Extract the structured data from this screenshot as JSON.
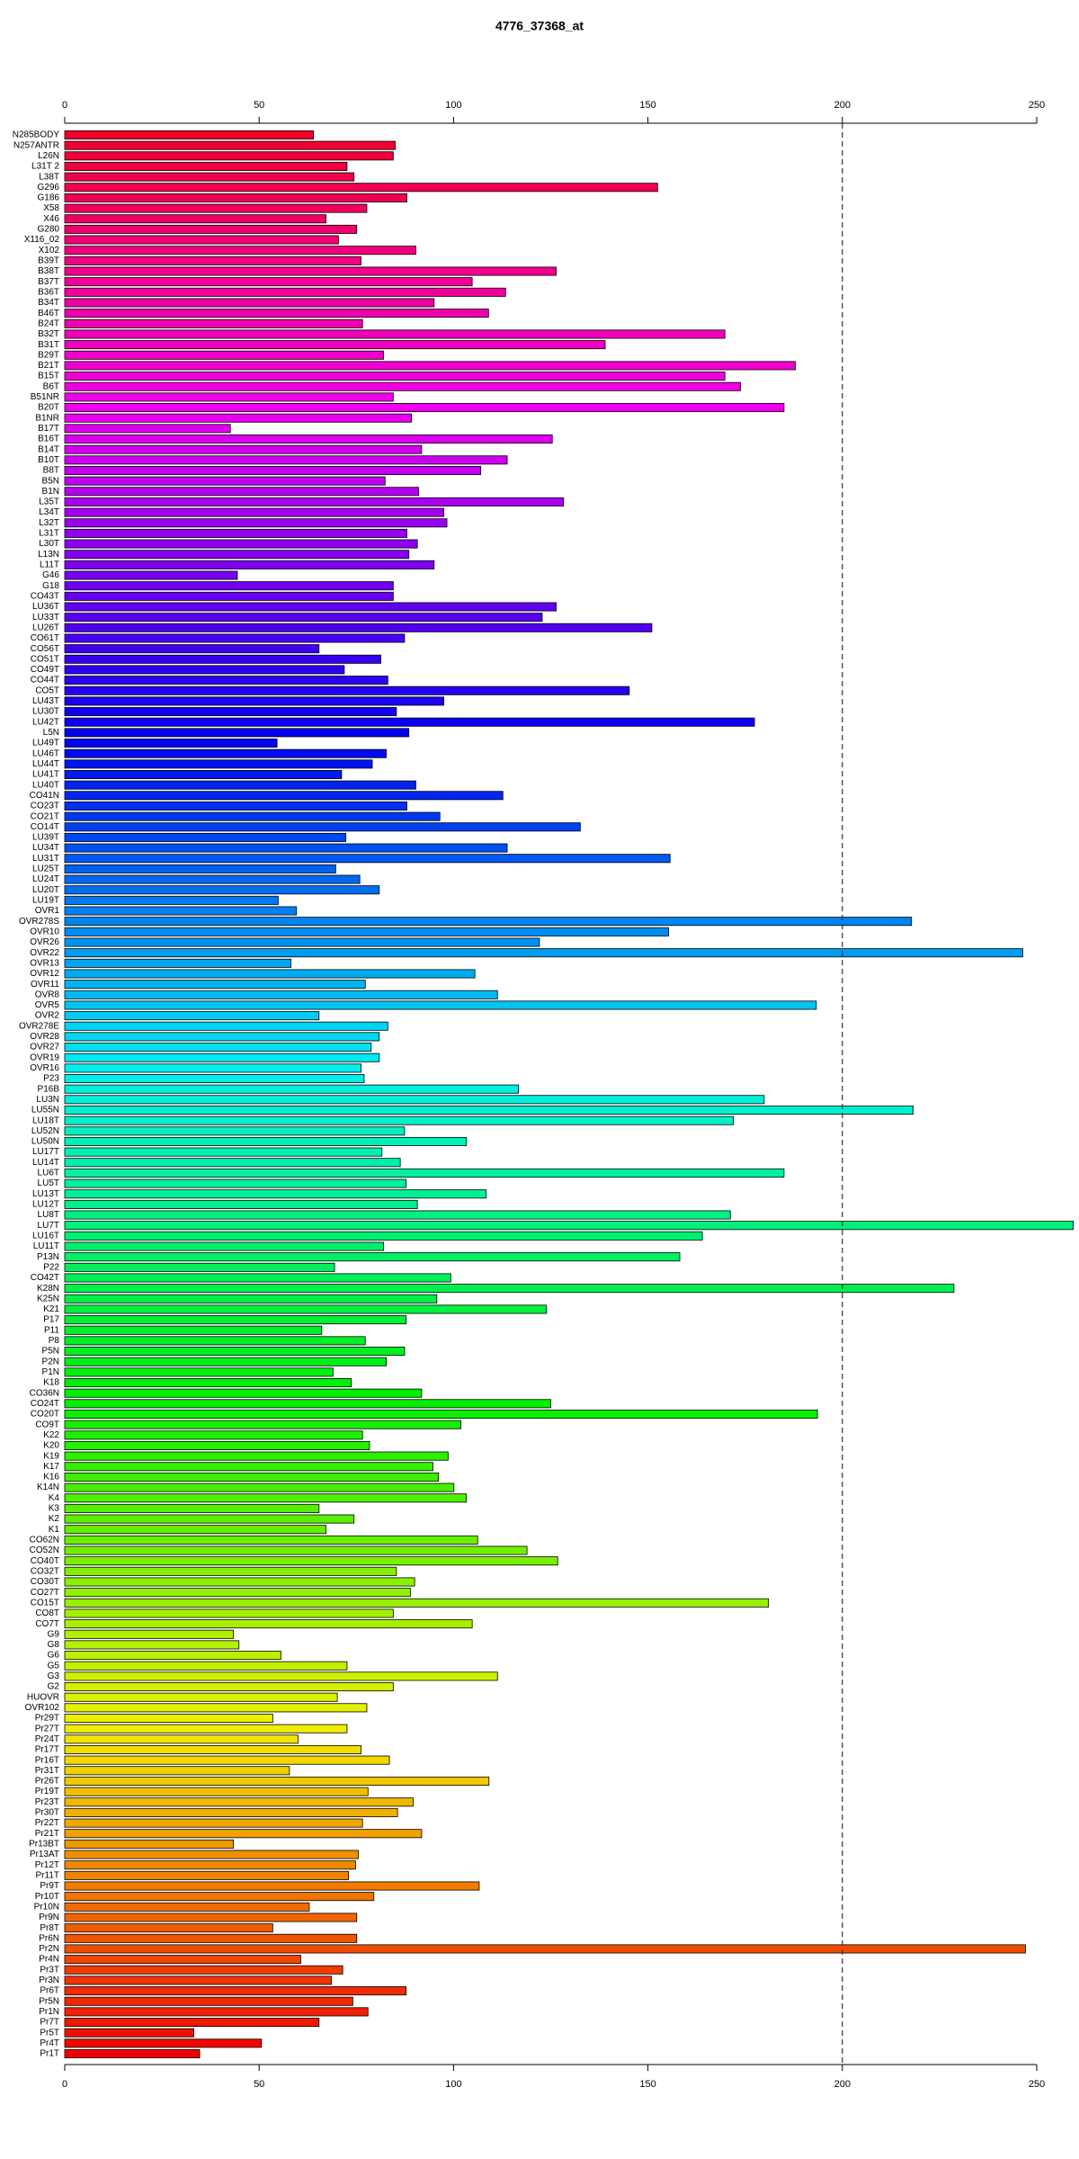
{
  "chart_data": {
    "type": "barh",
    "title": "4776_37368_at",
    "categories": [
      "N285BODY",
      "N257ANTR",
      "L26N",
      "L31T 2",
      "L38T",
      "G296",
      "G186",
      "X58",
      "X46",
      "G280",
      "X116_02",
      "X102",
      "B39T",
      "B38T",
      "B37T",
      "B36T",
      "B34T",
      "B46T",
      "B24T",
      "B32T",
      "B31T",
      "B29T",
      "B21T",
      "B15T",
      "B6T",
      "B51NR",
      "B20T",
      "B1NR",
      "B17T",
      "B16T",
      "B14T",
      "B10T",
      "B8T",
      "B5N",
      "B1N",
      "L35T",
      "L34T",
      "L32T",
      "L31T",
      "L30T",
      "L13N",
      "L11T",
      "G46",
      "G18",
      "CO43T",
      "LU36T",
      "LU33T",
      "LU26T",
      "CO61T",
      "CO56T",
      "CO51T",
      "CO49T",
      "CO44T",
      "CO5T",
      "LU43T",
      "LU30T",
      "LU42T",
      "L5N",
      "LU49T",
      "LU46T",
      "LU44T",
      "LU41T",
      "LU40T",
      "CO41N",
      "CO23T",
      "CO21T",
      "CO14T",
      "LU39T",
      "LU34T",
      "LU31T",
      "LU25T",
      "LU24T",
      "LU20T",
      "LU19T",
      "OVR1",
      "OVR278S",
      "OVR10",
      "OVR26",
      "OVR22",
      "OVR13",
      "OVR12",
      "OVR11",
      "OVR8",
      "OVR5",
      "OVR2",
      "OVR278E",
      "OVR28",
      "OVR27",
      "OVR19",
      "OVR16",
      "P23",
      "P16B",
      "LU3N",
      "LU55N",
      "LU18T",
      "LU52N",
      "LU50N",
      "LU17T",
      "LU14T",
      "LU6T",
      "LU5T",
      "LU13T",
      "LU12T",
      "LU8T",
      "LU7T",
      "LU16T",
      "LU11T",
      "P13N",
      "P22",
      "CO42T",
      "K28N",
      "K25N",
      "K21",
      "P17",
      "P11",
      "P8",
      "P5N",
      "P2N",
      "P1N",
      "K18",
      "CO36N",
      "CO24T",
      "CO20T",
      "CO9T",
      "K22",
      "K20",
      "K19",
      "K17",
      "K16",
      "K14N",
      "K4",
      "K3",
      "K2",
      "K1",
      "CO62N",
      "CO52N",
      "CO40T",
      "CO32T",
      "CO30T",
      "CO27T",
      "CO15T",
      "CO8T",
      "CO7T",
      "G9",
      "G8",
      "G6",
      "G5",
      "G3",
      "G2",
      "HUOVR",
      "OVR102",
      "Pr29T",
      "Pr27T",
      "Pr24T",
      "Pr17T",
      "Pr16T",
      "Pr31T",
      "Pr26T",
      "Pr19T",
      "Pr23T",
      "Pr30T",
      "Pr22T",
      "Pr21T",
      "Pr13BT",
      "Pr13AT",
      "Pr12T",
      "Pr11T",
      "Pr9T",
      "Pr10T",
      "Pr10N",
      "Pr9N",
      "Pr8T",
      "Pr6N",
      "Pr2N",
      "Pr4N",
      "Pr3T",
      "Pr3N",
      "Pr6T",
      "Pr5N",
      "Pr1N",
      "Pr7T",
      "Pr5T",
      "Pr4T",
      "Pr1T"
    ],
    "values": [
      64,
      85,
      84.5,
      72.6,
      74.4,
      152.5,
      88,
      77.7,
      67.2,
      75.1,
      70.4,
      90.3,
      76.2,
      126.4,
      104.8,
      113.4,
      95,
      109,
      76.6,
      169.8,
      139,
      82,
      187.9,
      169.8,
      173.8,
      84.5,
      185,
      89.2,
      42.6,
      125.4,
      91.8,
      113.8,
      107,
      82.4,
      91,
      128.3,
      97.5,
      98.3,
      88,
      90.7,
      88.5,
      95,
      44.4,
      84.5,
      84.5,
      126.4,
      122.8,
      151,
      87.4,
      65.4,
      81.3,
      71.9,
      83.1,
      145.2,
      97.5,
      85.3,
      177.4,
      88.5,
      54.6,
      82.7,
      79.1,
      71.2,
      90.3,
      112.7,
      88,
      96.5,
      132.6,
      72.3,
      113.8,
      155.7,
      69.7,
      75.9,
      80.9,
      54.9,
      59.6,
      217.8,
      155.3,
      122.1,
      246.4,
      58.2,
      105.5,
      77.3,
      111.3,
      193.3,
      65.4,
      83.1,
      80.9,
      78.8,
      80.9,
      76.2,
      77,
      116.7,
      179.9,
      218.2,
      172,
      87.4,
      103.3,
      81.6,
      86.3,
      185,
      87.8,
      108.4,
      90.7,
      171.2,
      259.4,
      164,
      82,
      158.2,
      69.4,
      99.3,
      228.7,
      95.7,
      123.9,
      87.8,
      66.1,
      77.3,
      87.4,
      82.7,
      69,
      73.7,
      91.8,
      125,
      193.6,
      101.9,
      76.6,
      78.4,
      98.6,
      94.7,
      96.1,
      100.1,
      103.3,
      65.4,
      74.4,
      67.2,
      106.2,
      118.9,
      126.8,
      85.3,
      90,
      88.9,
      181,
      84.5,
      104.8,
      43.4,
      44.8,
      55.6,
      72.6,
      111.3,
      84.5,
      70.1,
      77.7,
      53.5,
      72.6,
      60,
      76.2,
      83.5,
      57.8,
      109.1,
      78,
      89.6,
      85.6,
      76.6,
      91.8,
      43.4,
      75.5,
      74.8,
      73,
      106.6,
      79.5,
      62.9,
      75.1,
      53.5,
      75.1,
      247.1,
      60.7,
      71.5,
      68.6,
      87.8,
      74.1,
      78,
      65.4,
      33.2,
      50.6,
      34.7
    ],
    "hues": [
      350,
      348,
      346,
      344,
      342,
      340,
      339,
      337,
      335,
      333,
      331,
      329,
      327,
      325,
      323,
      321,
      319,
      317,
      316,
      314,
      312,
      310,
      308,
      306,
      304,
      302,
      300,
      298,
      296,
      295,
      293,
      291,
      289,
      287,
      285,
      283,
      281,
      279,
      277,
      275,
      273,
      272,
      270,
      268,
      266,
      264,
      262,
      260,
      258,
      256,
      254,
      252,
      251,
      249,
      247,
      245,
      243,
      241,
      239,
      237,
      235,
      233,
      231,
      230,
      228,
      226,
      224,
      222,
      220,
      218,
      216,
      214,
      212,
      210,
      208,
      207,
      205,
      203,
      201,
      199,
      197,
      195,
      193,
      191,
      189,
      187,
      186,
      184,
      182,
      180,
      178,
      176,
      174,
      172,
      170,
      168,
      166,
      164,
      163,
      161,
      159,
      157,
      155,
      153,
      151,
      149,
      147,
      145,
      143,
      142,
      140,
      138,
      136,
      134,
      132,
      130,
      128,
      126,
      124,
      122,
      120,
      119,
      117,
      115,
      113,
      111,
      109,
      107,
      105,
      103,
      101,
      99,
      98,
      96,
      94,
      92,
      90,
      88,
      86,
      84,
      82,
      80,
      78,
      76,
      75,
      73,
      71,
      69,
      67,
      65,
      63,
      61,
      59,
      57,
      55,
      54,
      52,
      50,
      48,
      46,
      44,
      42,
      40,
      38,
      36,
      34,
      33,
      31,
      29,
      27,
      25,
      23,
      21,
      19,
      17,
      15,
      13,
      11,
      10,
      8,
      6,
      4,
      2,
      0
    ],
    "xlim": [
      0,
      250
    ],
    "xticks": [
      0,
      50,
      100,
      150,
      200,
      250
    ],
    "reference_line": 200
  }
}
